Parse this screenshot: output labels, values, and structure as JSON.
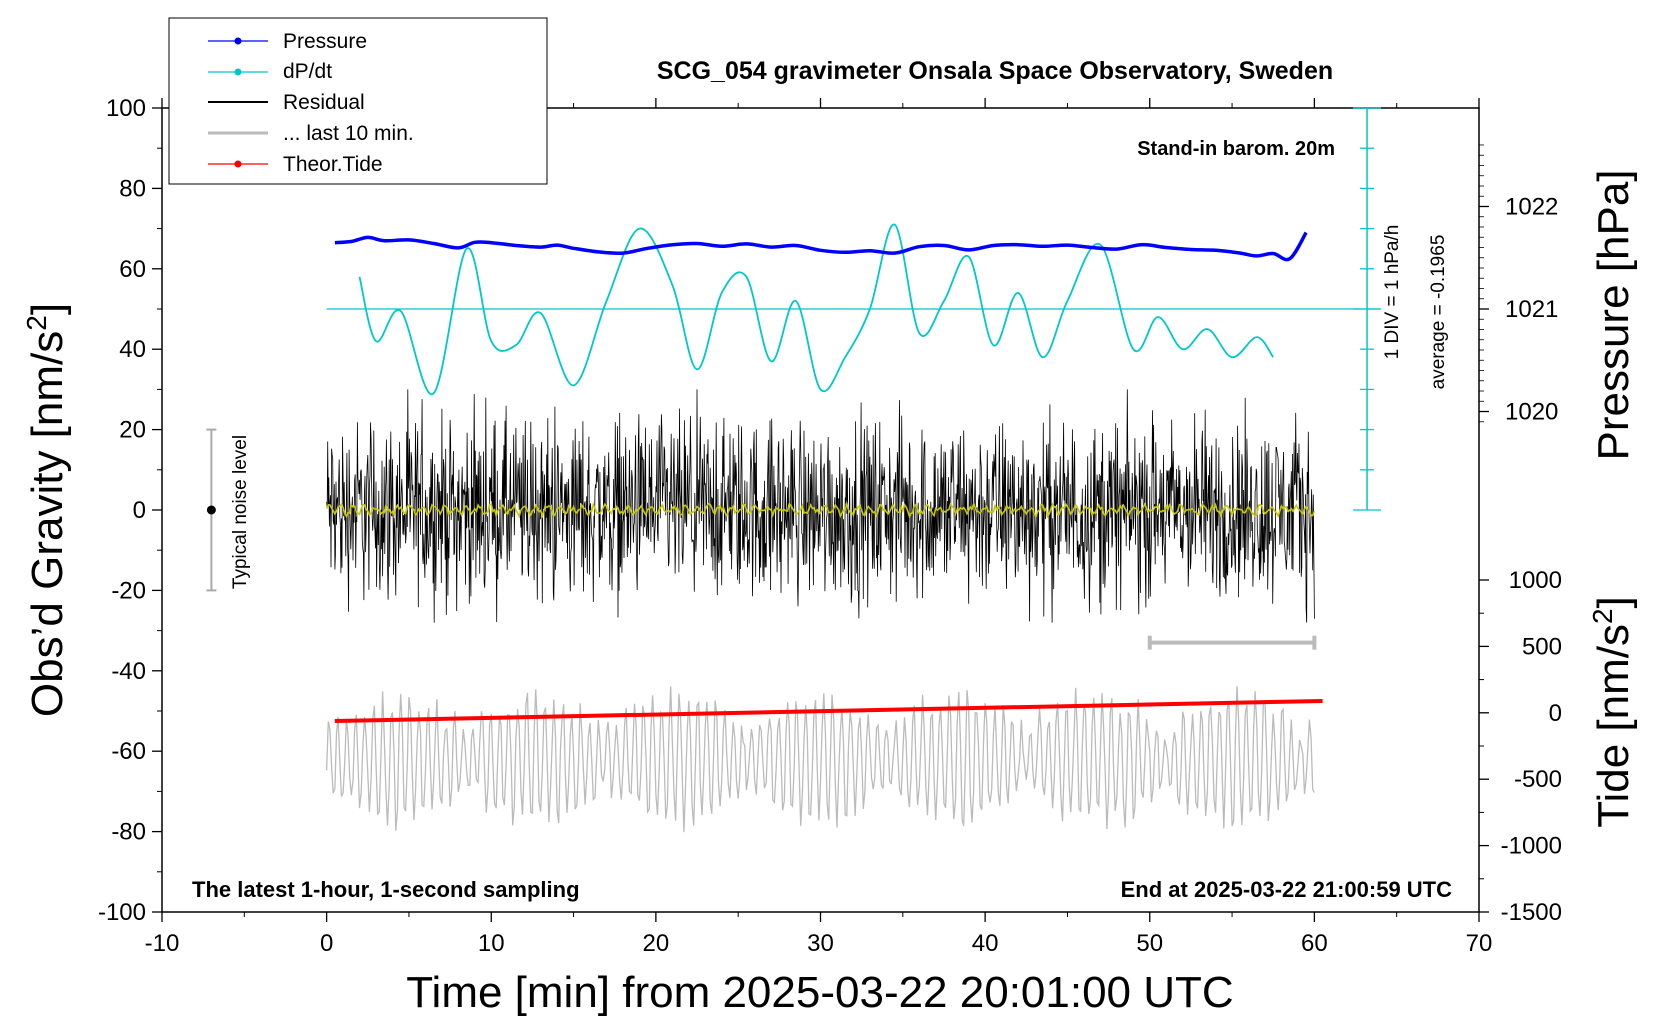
{
  "chart_data": {
    "type": "line",
    "title": "SCG_054 gravimeter Onsala Space Observatory, Sweden",
    "xlabel": "Time [min] from 2025-03-22 20:01:00 UTC",
    "ylabel_prefix": "Obs’d Gravity [nm/s",
    "ylabel_exp": "2",
    "ylabel_suffix": "]",
    "right_top_label": "Pressure [hPa]",
    "right_bottom_prefix": "Tide [nm/s",
    "right_bottom_exp": "2",
    "right_bottom_suffix": "]",
    "xlim": [
      -10,
      70
    ],
    "ylim": [
      -100,
      100
    ],
    "x_ticks": [
      "-10",
      "0",
      "10",
      "20",
      "30",
      "40",
      "50",
      "60",
      "70"
    ],
    "y_ticks": [
      "100",
      "80",
      "60",
      "40",
      "20",
      "0",
      "-20",
      "-40",
      "-60",
      "-80",
      "-100"
    ],
    "pressure_ticks": [
      "1022",
      "1021",
      "1020"
    ],
    "tide_ticks": [
      "1000",
      "500",
      "0",
      "-500",
      "-1000",
      "-1500"
    ],
    "legend": [
      {
        "label": "Pressure",
        "color": "#0000ff",
        "marker": true
      },
      {
        "label": "dP/dt",
        "color": "#00c8c8",
        "marker": true
      },
      {
        "label": "Residual",
        "color": "#000000",
        "marker": false
      },
      {
        "label": "... last 10 min.",
        "color": "#bbbbbb",
        "marker": false
      },
      {
        "label": "Theor.Tide",
        "color": "#ff0000",
        "marker": true
      }
    ],
    "annotations": {
      "barometer": "Stand-in barom. 20m",
      "div_label": "1 DIV = 1 hPa/h",
      "average": "average = -0.1965",
      "noise": "Typical noise level",
      "bottom_left": "The latest 1-hour, 1-second sampling",
      "bottom_right": "End at 2025-03-22 21:00:59 UTC"
    },
    "series": [
      {
        "name": "Pressure",
        "color": "#0000ff",
        "x": [
          0.5,
          1.5,
          2.5,
          3.5,
          5,
          6.5,
          8,
          9,
          10,
          11.5,
          13,
          14,
          15,
          16.5,
          18,
          19.5,
          21,
          22.5,
          24,
          25.5,
          27,
          28.5,
          30,
          31.5,
          33,
          34.5,
          36,
          37.5,
          39,
          40.5,
          42,
          43.5,
          45,
          46.5,
          48,
          49.5,
          51,
          52.5,
          54,
          55.5,
          56.5,
          57.5,
          58.5,
          59.5
        ],
        "y": [
          66.5,
          66.8,
          67.8,
          67.0,
          67.2,
          66.3,
          65.2,
          66.6,
          66.5,
          65.8,
          65.4,
          65.9,
          65.1,
          64.2,
          63.9,
          65.1,
          66.0,
          66.3,
          65.6,
          66.2,
          65.4,
          65.8,
          64.6,
          64.1,
          64.5,
          63.9,
          65.5,
          65.8,
          64.7,
          65.8,
          66.0,
          65.6,
          65.9,
          65.3,
          64.9,
          66.0,
          65.3,
          64.8,
          64.6,
          63.9,
          63.2,
          63.8,
          62.5,
          69.0
        ]
      },
      {
        "name": "dP/dt",
        "color": "#00c8c8",
        "x": [
          2,
          3,
          4.5,
          6.5,
          8.5,
          10,
          11.5,
          13,
          15,
          17,
          19,
          21,
          22.5,
          24,
          25.5,
          27,
          28.5,
          30,
          31.5,
          33,
          34.5,
          36,
          37.5,
          39,
          40.5,
          42,
          43.5,
          45,
          47,
          49,
          50.5,
          52,
          53.5,
          55,
          56.5,
          57.5
        ],
        "y": [
          58,
          42,
          49.5,
          29,
          65,
          42,
          41,
          49,
          31,
          52,
          70,
          56,
          35,
          54,
          58,
          37,
          52,
          30,
          38,
          50,
          71,
          44,
          52,
          63,
          41,
          54,
          38,
          52,
          66,
          40,
          48,
          40,
          45,
          38,
          43,
          38
        ]
      },
      {
        "name": "Theor.Tide",
        "color": "#ff0000",
        "x": [
          0.5,
          60.5
        ],
        "y": [
          -52.5,
          -47.5
        ]
      },
      {
        "name": "Residual",
        "color": "#000000",
        "x_range": [
          0,
          60
        ],
        "y_range": [
          -28,
          30
        ]
      },
      {
        "name": "... last 10 min.",
        "color": "#bbbbbb",
        "x_range": [
          0,
          60
        ],
        "y_range": [
          -90,
          -35
        ]
      }
    ],
    "noise_bar": {
      "x": -7,
      "y_low": -20,
      "y_high": 20,
      "y_dot": 0
    },
    "window_bar": {
      "x_start": 50,
      "x_end": 60,
      "y": -33
    },
    "dpdt_zero_line_y": 50
  }
}
